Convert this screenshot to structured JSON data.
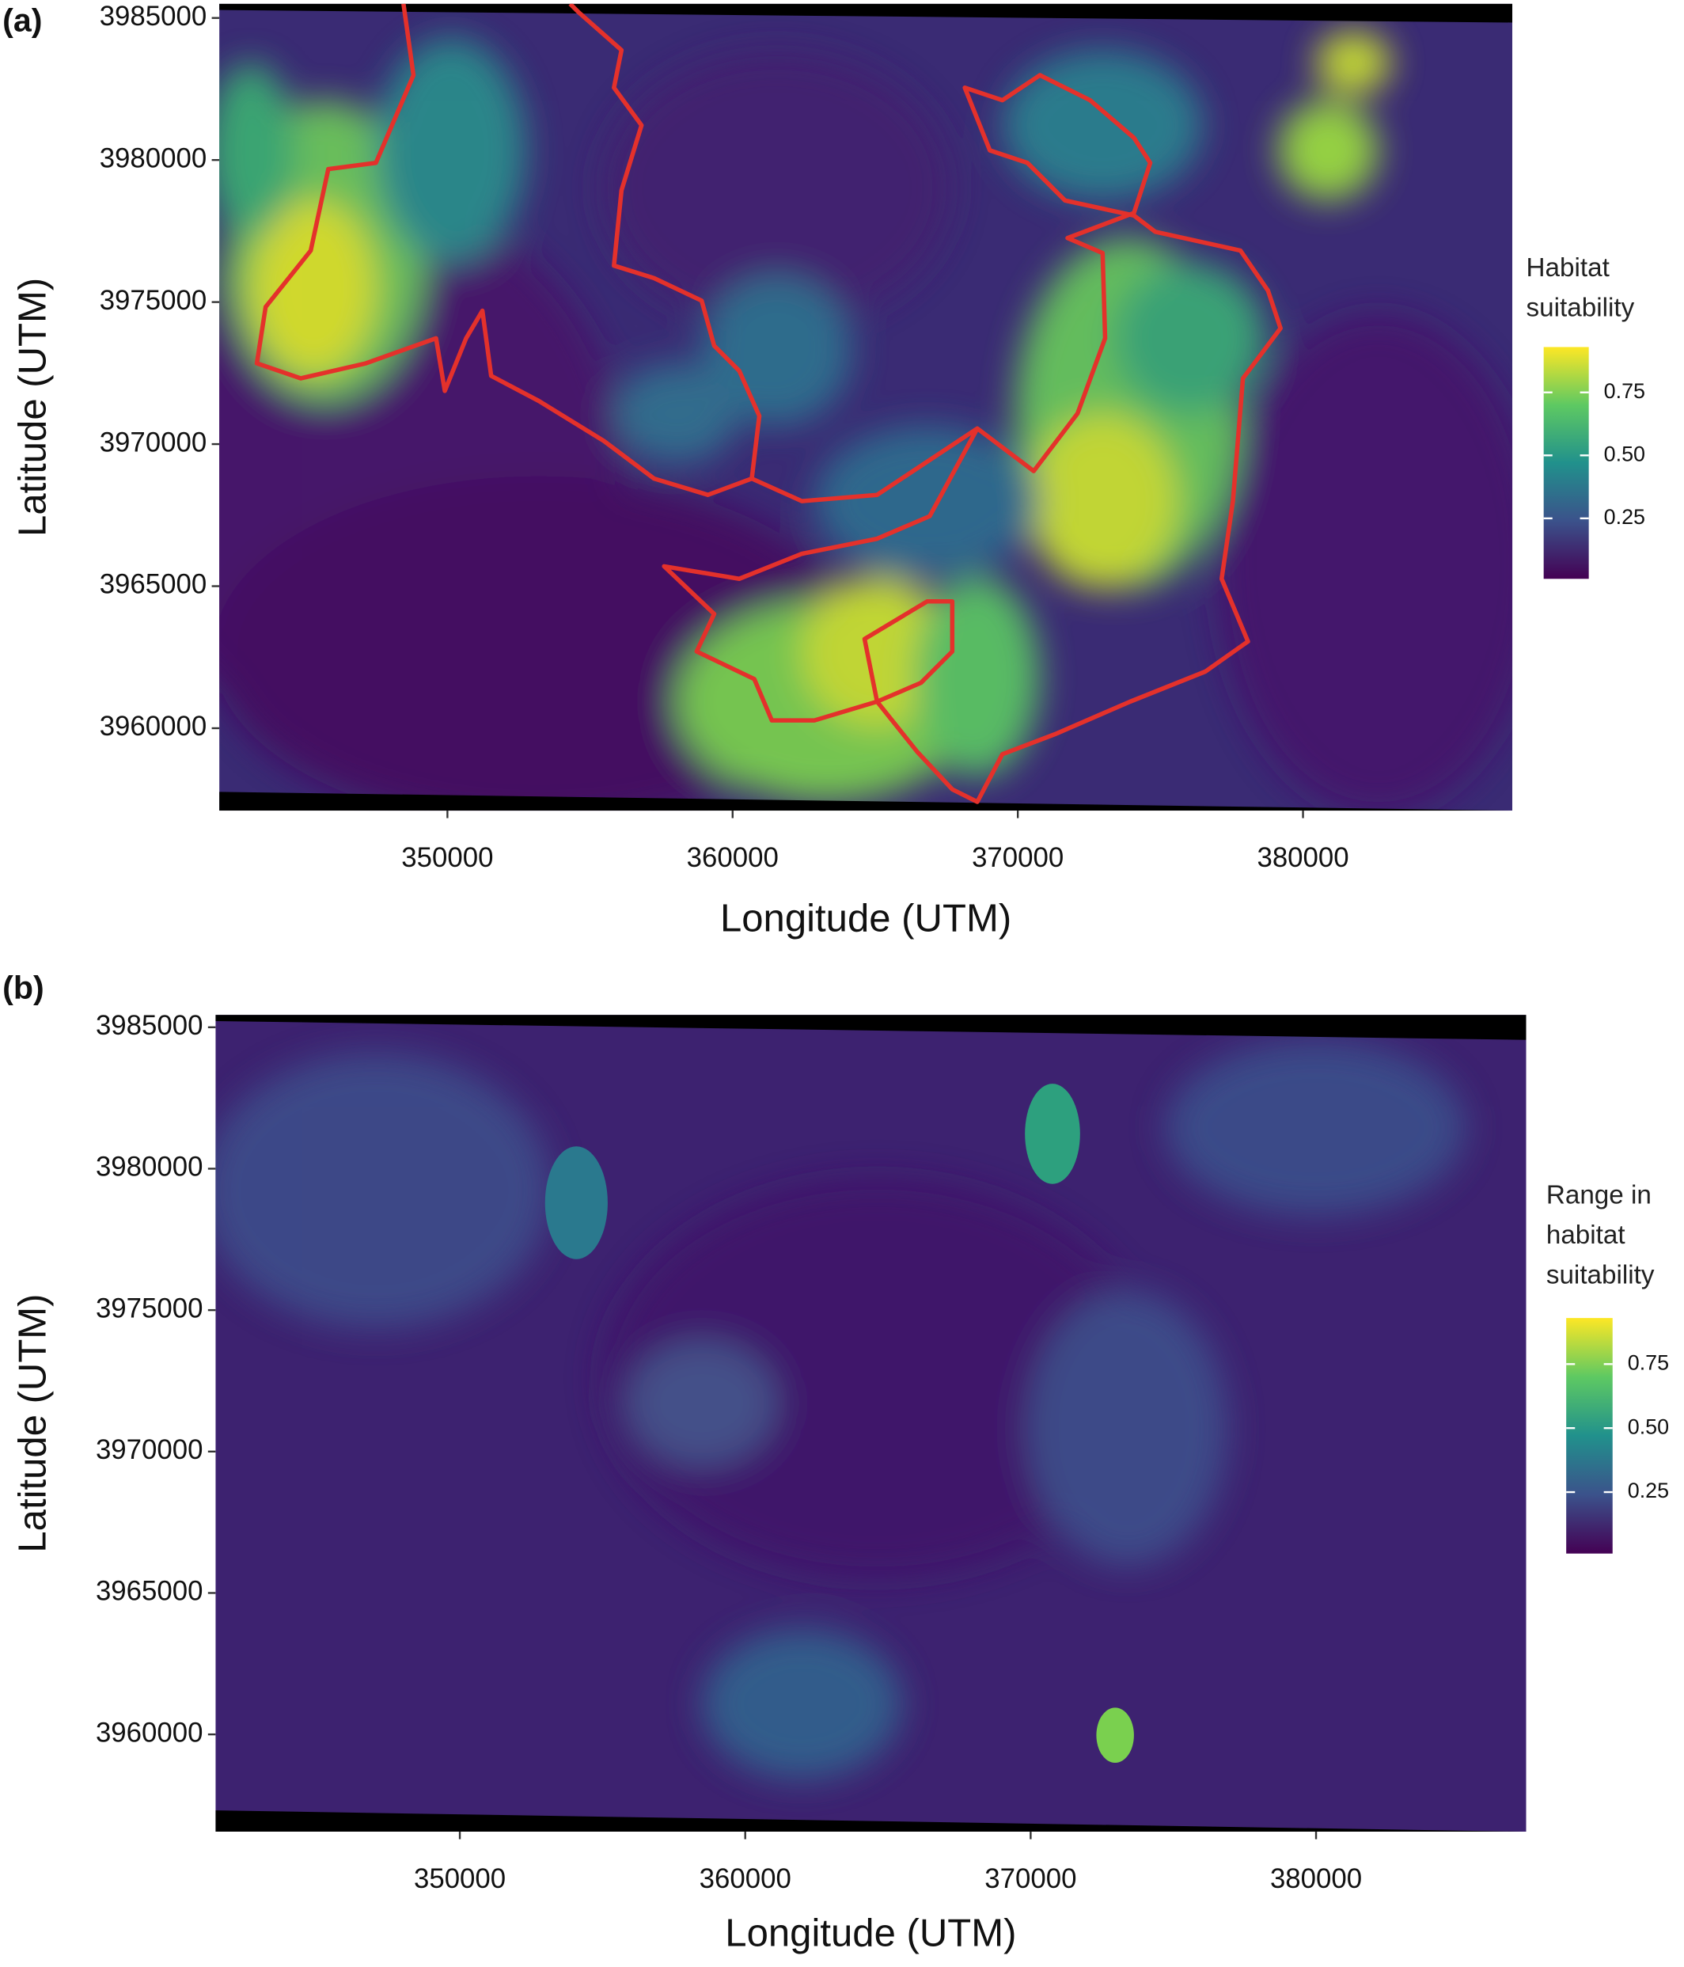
{
  "chart_data": [
    {
      "type": "heatmap",
      "panel_label": "(a)",
      "xlabel": "Longitude (UTM)",
      "ylabel": "Latitude (UTM)",
      "xlim": [
        342000,
        387340
      ],
      "ylim": [
        3957100,
        3985500
      ],
      "xticks": [
        350000,
        360000,
        370000,
        380000
      ],
      "yticks": [
        3960000,
        3965000,
        3970000,
        3975000,
        3980000,
        3985000
      ],
      "colorbar": {
        "title": [
          "Habitat",
          "suitability"
        ],
        "lim": [
          0.01,
          0.93
        ],
        "ticks": [
          0.25,
          {
            "value": 0.5,
            "label": "0.50"
          },
          0.75
        ]
      }
    },
    {
      "type": "heatmap",
      "panel_label": "(b)",
      "xlabel": "Longitude (UTM)",
      "ylabel": "Latitude (UTM)",
      "xlim": [
        341440,
        387360
      ],
      "ylim": [
        3956560,
        3985440
      ],
      "xticks": [
        350000,
        360000,
        370000,
        380000
      ],
      "yticks": [
        3960000,
        3965000,
        3970000,
        3975000,
        3980000,
        3985000
      ],
      "colorbar": {
        "title": [
          "Range in",
          "habitat",
          "suitability"
        ],
        "lim": [
          0.01,
          0.93
        ],
        "ticks": [
          0.25,
          {
            "value": 0.5,
            "label": "0.50"
          },
          0.75
        ]
      }
    }
  ]
}
